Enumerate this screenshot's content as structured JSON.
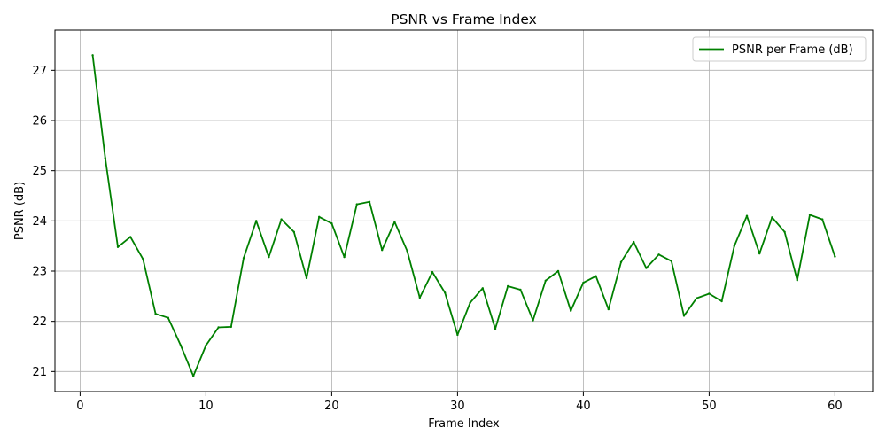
{
  "chart_data": {
    "type": "line",
    "title": "PSNR vs Frame Index",
    "xlabel": "Frame Index",
    "ylabel": "PSNR (dB)",
    "xlim": [
      -2,
      63
    ],
    "ylim": [
      20.6,
      27.8
    ],
    "xticks": [
      0,
      10,
      20,
      30,
      40,
      50,
      60
    ],
    "yticks": [
      21,
      22,
      23,
      24,
      25,
      26,
      27
    ],
    "grid": true,
    "legend_position": "top-right",
    "series": [
      {
        "name": "PSNR per Frame (dB)",
        "color": "#008000",
        "x": [
          1,
          2,
          3,
          4,
          5,
          6,
          7,
          8,
          9,
          10,
          11,
          12,
          13,
          14,
          15,
          16,
          17,
          18,
          19,
          20,
          21,
          22,
          23,
          24,
          25,
          26,
          27,
          28,
          29,
          30,
          31,
          32,
          33,
          34,
          35,
          36,
          37,
          38,
          39,
          40,
          41,
          42,
          43,
          44,
          45,
          46,
          47,
          48,
          49,
          50,
          51,
          52,
          53,
          54,
          55,
          56,
          57,
          58,
          59,
          60
        ],
        "y": [
          27.3,
          25.25,
          23.48,
          23.68,
          23.24,
          22.15,
          22.07,
          21.52,
          20.91,
          21.52,
          21.88,
          21.89,
          23.26,
          24.0,
          23.28,
          24.03,
          23.78,
          22.86,
          24.08,
          23.95,
          23.28,
          24.33,
          24.38,
          23.42,
          23.98,
          23.4,
          22.47,
          22.98,
          22.57,
          21.73,
          22.37,
          22.66,
          21.85,
          22.7,
          22.63,
          22.02,
          22.81,
          23.0,
          22.21,
          22.77,
          22.9,
          22.24,
          23.18,
          23.58,
          23.06,
          23.33,
          23.2,
          22.11,
          22.46,
          22.55,
          22.4,
          23.5,
          24.1,
          23.35,
          24.07,
          23.78,
          22.82,
          24.12,
          24.03,
          23.29
        ]
      }
    ]
  }
}
